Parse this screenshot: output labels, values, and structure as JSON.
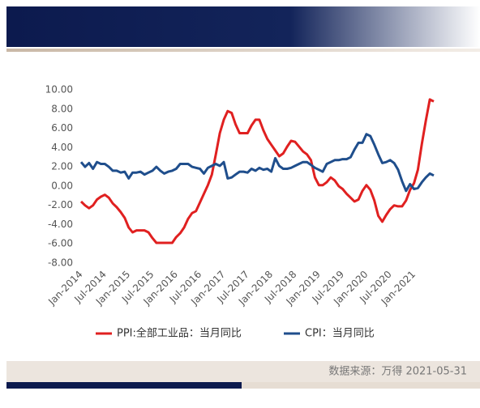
{
  "chart_data": {
    "type": "line",
    "categories": [
      "Jan-2014",
      null,
      null,
      null,
      null,
      null,
      "Jul-2014",
      null,
      null,
      null,
      null,
      null,
      "Jan-2015",
      null,
      null,
      null,
      null,
      null,
      "Jul-2015",
      null,
      null,
      null,
      null,
      null,
      "Jan-2016",
      null,
      null,
      null,
      null,
      null,
      "Jul-2016",
      null,
      null,
      null,
      null,
      null,
      "Jan-2017",
      null,
      null,
      null,
      null,
      null,
      "Jul-2017",
      null,
      null,
      null,
      null,
      null,
      "Jan-2018",
      null,
      null,
      null,
      null,
      null,
      "Jul-2018",
      null,
      null,
      null,
      null,
      null,
      "Jan-2019",
      null,
      null,
      null,
      null,
      null,
      "Jul-2019",
      null,
      null,
      null,
      null,
      null,
      "Jan-2020",
      null,
      null,
      null,
      null,
      null,
      "Jul-2020",
      null,
      null,
      null,
      null,
      null,
      "Jan-2021",
      null,
      null,
      null,
      null,
      null
    ],
    "series": [
      {
        "name": "PPI:全部工业品：当月同比",
        "color": "#e02020",
        "values": [
          -1.6,
          -2.0,
          -2.3,
          -2.0,
          -1.4,
          -1.1,
          -0.9,
          -1.2,
          -1.8,
          -2.2,
          -2.7,
          -3.3,
          -4.3,
          -4.8,
          -4.6,
          -4.6,
          -4.6,
          -4.8,
          -5.4,
          -5.9,
          -5.9,
          -5.9,
          -5.9,
          -5.9,
          -5.3,
          -4.9,
          -4.3,
          -3.4,
          -2.8,
          -2.6,
          -1.7,
          -0.8,
          0.1,
          1.2,
          3.3,
          5.5,
          6.9,
          7.8,
          7.6,
          6.4,
          5.5,
          5.5,
          5.5,
          6.3,
          6.9,
          6.9,
          5.8,
          4.9,
          4.3,
          3.7,
          3.1,
          3.4,
          4.1,
          4.7,
          4.6,
          4.1,
          3.6,
          3.3,
          2.7,
          0.9,
          0.1,
          0.1,
          0.4,
          0.9,
          0.6,
          0.0,
          -0.3,
          -0.8,
          -1.2,
          -1.6,
          -1.4,
          -0.5,
          0.1,
          -0.4,
          -1.5,
          -3.1,
          -3.7,
          -3.0,
          -2.4,
          -2.0,
          -2.1,
          -2.1,
          -1.5,
          -0.4,
          0.3,
          1.7,
          4.4,
          6.8,
          9.0,
          8.8
        ]
      },
      {
        "name": "CPI：当月同比",
        "color": "#1f4e8c",
        "values": [
          2.5,
          2.0,
          2.4,
          1.8,
          2.5,
          2.3,
          2.3,
          2.0,
          1.6,
          1.6,
          1.4,
          1.5,
          0.8,
          1.4,
          1.4,
          1.5,
          1.2,
          1.4,
          1.6,
          2.0,
          1.6,
          1.3,
          1.5,
          1.6,
          1.8,
          2.3,
          2.3,
          2.3,
          2.0,
          1.9,
          1.8,
          1.3,
          1.9,
          2.1,
          2.3,
          2.1,
          2.5,
          0.8,
          0.9,
          1.2,
          1.5,
          1.5,
          1.4,
          1.8,
          1.6,
          1.9,
          1.7,
          1.8,
          1.5,
          2.9,
          2.1,
          1.8,
          1.8,
          1.9,
          2.1,
          2.3,
          2.5,
          2.5,
          2.2,
          1.9,
          1.7,
          1.5,
          2.3,
          2.5,
          2.7,
          2.7,
          2.8,
          2.8,
          3.0,
          3.8,
          4.5,
          4.5,
          5.4,
          5.2,
          4.3,
          3.3,
          2.4,
          2.5,
          2.7,
          2.4,
          1.7,
          0.5,
          -0.5,
          0.2,
          -0.3,
          -0.2,
          0.4,
          0.9,
          1.3,
          1.1
        ]
      }
    ],
    "ylim": [
      -8,
      10
    ],
    "yticks": [
      {
        "value": 10,
        "label": "10.00"
      },
      {
        "value": 8,
        "label": "8.00"
      },
      {
        "value": 6,
        "label": "6.00"
      },
      {
        "value": 4,
        "label": "4.00"
      },
      {
        "value": 2,
        "label": "2.00"
      },
      {
        "value": 0,
        "label": "0.00"
      },
      {
        "value": -2,
        "label": "-2.00"
      },
      {
        "value": -4,
        "label": "-4.00"
      },
      {
        "value": -6,
        "label": "-6.00"
      },
      {
        "value": -8,
        "label": "-8.00"
      }
    ],
    "legend": "bottom",
    "source": "数据来源：万得 2021-05-31"
  }
}
